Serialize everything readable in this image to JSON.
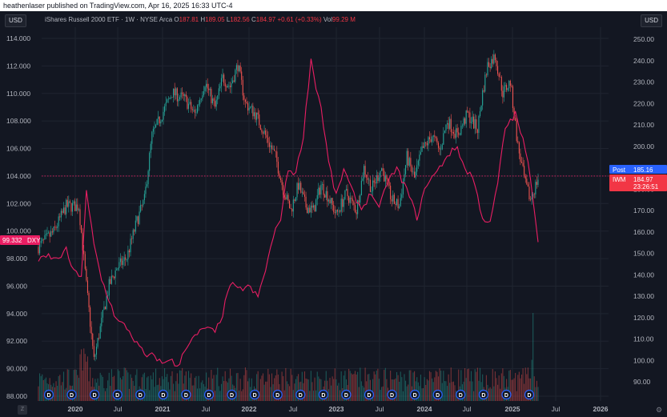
{
  "header": {
    "attribution": "heathenlaser published on TradingView.com, Apr 16, 2025 16:33 UTC-4"
  },
  "left_currency": "USD",
  "right_currency": "USD",
  "legend": {
    "title": "iShares Russell 2000 ETF · 1W · NYSE Arca",
    "o_label": "O",
    "o_value": "187.81",
    "h_label": "H",
    "h_value": "189.05",
    "l_label": "L",
    "l_value": "182.56",
    "c_label": "C",
    "c_value": "184.97",
    "change": "+0.61 (+0.33%)",
    "vol_label": "Vol",
    "vol_value": "99.29 M"
  },
  "badges": {
    "dxy_value": "99.332",
    "dxy_label": "DXY",
    "post_label": "Post",
    "post_value": "185.16",
    "iwm_label": "IWM",
    "iwm_value": "184.97",
    "countdown": "23:26:51"
  },
  "icons": {
    "z": "Z",
    "gear": "⚙"
  },
  "colors": {
    "bull": "#26a69a",
    "bear": "#ef5350",
    "dxy_line": "#e91e63",
    "post_badge": "#2962ff",
    "iwm_badge": "#f23645",
    "dividend": "#2962ff"
  },
  "chart_data": {
    "type": "candlestick",
    "left_axis_ticks": [
      "114.000",
      "112.000",
      "110.000",
      "108.000",
      "106.000",
      "104.000",
      "102.000",
      "100.000",
      "98.000",
      "96.000",
      "94.000",
      "92.000",
      "90.000",
      "88.000"
    ],
    "right_axis_ticks": [
      "250.00",
      "240.00",
      "230.00",
      "220.00",
      "210.00",
      "200.00",
      "190.00",
      "180.00",
      "170.00",
      "160.00",
      "150.00",
      "140.00",
      "130.00",
      "120.00",
      "110.00",
      "100.00",
      "90.00"
    ],
    "time_ticks": [
      "2020",
      "Jul",
      "2021",
      "Jul",
      "2022",
      "Jul",
      "2023",
      "Jul",
      "2024",
      "Jul",
      "2025",
      "Jul",
      "2026"
    ],
    "dividend_marker": "D",
    "dividend_count": 22,
    "iwm_anchors": [
      [
        0,
        153
      ],
      [
        12,
        160
      ],
      [
        22,
        172
      ],
      [
        32,
        172
      ],
      [
        38,
        135
      ],
      [
        44,
        100
      ],
      [
        50,
        118
      ],
      [
        56,
        135
      ],
      [
        62,
        143
      ],
      [
        70,
        148
      ],
      [
        78,
        165
      ],
      [
        84,
        175
      ],
      [
        90,
        205
      ],
      [
        98,
        215
      ],
      [
        106,
        225
      ],
      [
        116,
        222
      ],
      [
        124,
        215
      ],
      [
        132,
        230
      ],
      [
        140,
        218
      ],
      [
        146,
        232
      ],
      [
        152,
        228
      ],
      [
        158,
        238
      ],
      [
        164,
        220
      ],
      [
        172,
        215
      ],
      [
        180,
        205
      ],
      [
        188,
        195
      ],
      [
        194,
        180
      ],
      [
        200,
        170
      ],
      [
        206,
        182
      ],
      [
        212,
        172
      ],
      [
        218,
        170
      ],
      [
        224,
        182
      ],
      [
        230,
        176
      ],
      [
        236,
        168
      ],
      [
        244,
        178
      ],
      [
        252,
        170
      ],
      [
        258,
        190
      ],
      [
        264,
        180
      ],
      [
        272,
        190
      ],
      [
        280,
        175
      ],
      [
        286,
        172
      ],
      [
        292,
        195
      ],
      [
        298,
        185
      ],
      [
        304,
        198
      ],
      [
        312,
        205
      ],
      [
        318,
        198
      ],
      [
        324,
        212
      ],
      [
        332,
        205
      ],
      [
        340,
        215
      ],
      [
        348,
        208
      ],
      [
        352,
        225
      ],
      [
        356,
        238
      ],
      [
        362,
        242
      ],
      [
        368,
        225
      ],
      [
        374,
        230
      ],
      [
        380,
        200
      ],
      [
        386,
        182
      ],
      [
        390,
        175
      ],
      [
        396,
        185
      ]
    ],
    "dxy_anchors": [
      [
        0,
        97.8
      ],
      [
        8,
        98.2
      ],
      [
        14,
        97.9
      ],
      [
        22,
        98.6
      ],
      [
        28,
        97.0
      ],
      [
        34,
        96.8
      ],
      [
        38,
        102.8
      ],
      [
        44,
        99.0
      ],
      [
        50,
        96.5
      ],
      [
        56,
        95.0
      ],
      [
        62,
        93.5
      ],
      [
        70,
        93.0
      ],
      [
        78,
        91.8
      ],
      [
        86,
        90.8
      ],
      [
        92,
        91.0
      ],
      [
        98,
        90.3
      ],
      [
        104,
        90.8
      ],
      [
        110,
        90.0
      ],
      [
        116,
        91.5
      ],
      [
        124,
        92.3
      ],
      [
        132,
        93.0
      ],
      [
        140,
        92.6
      ],
      [
        146,
        94.0
      ],
      [
        152,
        96.2
      ],
      [
        158,
        95.7
      ],
      [
        166,
        96.0
      ],
      [
        174,
        95.2
      ],
      [
        180,
        97.2
      ],
      [
        186,
        99.5
      ],
      [
        192,
        101.0
      ],
      [
        198,
        104.5
      ],
      [
        204,
        104.2
      ],
      [
        210,
        107.0
      ],
      [
        216,
        112.5
      ],
      [
        220,
        110.5
      ],
      [
        224,
        109.0
      ],
      [
        230,
        105.0
      ],
      [
        236,
        102.5
      ],
      [
        242,
        104.5
      ],
      [
        248,
        103.0
      ],
      [
        256,
        101.6
      ],
      [
        264,
        102.8
      ],
      [
        270,
        101.5
      ],
      [
        276,
        103.5
      ],
      [
        284,
        104.5
      ],
      [
        292,
        103.0
      ],
      [
        300,
        101.0
      ],
      [
        308,
        103.5
      ],
      [
        316,
        104.3
      ],
      [
        324,
        105.5
      ],
      [
        332,
        106.1
      ],
      [
        338,
        104.5
      ],
      [
        344,
        104.0
      ],
      [
        352,
        101.0
      ],
      [
        358,
        100.5
      ],
      [
        364,
        103.5
      ],
      [
        370,
        107.5
      ],
      [
        378,
        108.5
      ],
      [
        384,
        106.6
      ],
      [
        390,
        104.0
      ],
      [
        396,
        99.3
      ]
    ]
  }
}
